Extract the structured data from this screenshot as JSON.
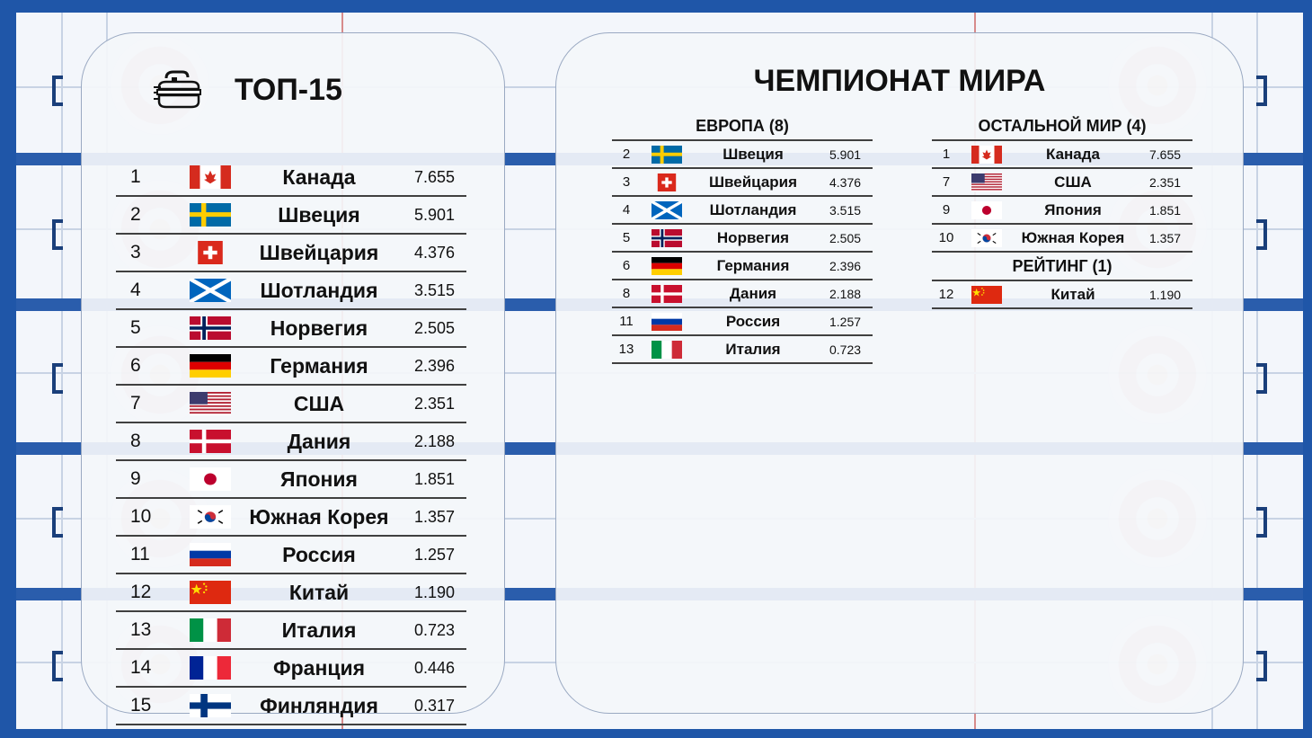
{
  "top15": {
    "title": "ТОП-15",
    "rows": [
      {
        "pos": "1",
        "country": "Канада",
        "points": "7.655",
        "flag": "canada"
      },
      {
        "pos": "2",
        "country": "Швеция",
        "points": "5.901",
        "flag": "sweden"
      },
      {
        "pos": "3",
        "country": "Швейцария",
        "points": "4.376",
        "flag": "switzerland"
      },
      {
        "pos": "4",
        "country": "Шотландия",
        "points": "3.515",
        "flag": "scotland"
      },
      {
        "pos": "5",
        "country": "Норвегия",
        "points": "2.505",
        "flag": "norway"
      },
      {
        "pos": "6",
        "country": "Германия",
        "points": "2.396",
        "flag": "germany"
      },
      {
        "pos": "7",
        "country": "США",
        "points": "2.351",
        "flag": "usa"
      },
      {
        "pos": "8",
        "country": "Дания",
        "points": "2.188",
        "flag": "denmark"
      },
      {
        "pos": "9",
        "country": "Япония",
        "points": "1.851",
        "flag": "japan"
      },
      {
        "pos": "10",
        "country": "Южная Корея",
        "points": "1.357",
        "flag": "korea"
      },
      {
        "pos": "11",
        "country": "Россия",
        "points": "1.257",
        "flag": "russia"
      },
      {
        "pos": "12",
        "country": "Китай",
        "points": "1.190",
        "flag": "china"
      },
      {
        "pos": "13",
        "country": "Италия",
        "points": "0.723",
        "flag": "italy"
      },
      {
        "pos": "14",
        "country": "Франция",
        "points": "0.446",
        "flag": "france"
      },
      {
        "pos": "15",
        "country": "Финляндия",
        "points": "0.317",
        "flag": "finland"
      }
    ]
  },
  "world": {
    "title": "ЧЕМПИОНАТ МИРА",
    "europe": {
      "heading": "ЕВРОПА (8)",
      "rows": [
        {
          "pos": "2",
          "country": "Швеция",
          "points": "5.901",
          "flag": "sweden"
        },
        {
          "pos": "3",
          "country": "Швейцария",
          "points": "4.376",
          "flag": "switzerland"
        },
        {
          "pos": "4",
          "country": "Шотландия",
          "points": "3.515",
          "flag": "scotland"
        },
        {
          "pos": "5",
          "country": "Норвегия",
          "points": "2.505",
          "flag": "norway"
        },
        {
          "pos": "6",
          "country": "Германия",
          "points": "2.396",
          "flag": "germany"
        },
        {
          "pos": "8",
          "country": "Дания",
          "points": "2.188",
          "flag": "denmark"
        },
        {
          "pos": "11",
          "country": "Россия",
          "points": "1.257",
          "flag": "russia"
        },
        {
          "pos": "13",
          "country": "Италия",
          "points": "0.723",
          "flag": "italy"
        }
      ]
    },
    "rest": {
      "heading": "ОСТАЛЬНОЙ МИР (4)",
      "rows": [
        {
          "pos": "1",
          "country": "Канада",
          "points": "7.655",
          "flag": "canada"
        },
        {
          "pos": "7",
          "country": "США",
          "points": "2.351",
          "flag": "usa"
        },
        {
          "pos": "9",
          "country": "Япония",
          "points": "1.851",
          "flag": "japan"
        },
        {
          "pos": "10",
          "country": "Южная Корея",
          "points": "1.357",
          "flag": "korea"
        }
      ]
    },
    "rating": {
      "heading": "РЕЙТИНГ (1)",
      "rows": [
        {
          "pos": "12",
          "country": "Китай",
          "points": "1.190",
          "flag": "china"
        }
      ]
    }
  },
  "icons": {
    "title_icon": "curling-stone-icon"
  }
}
